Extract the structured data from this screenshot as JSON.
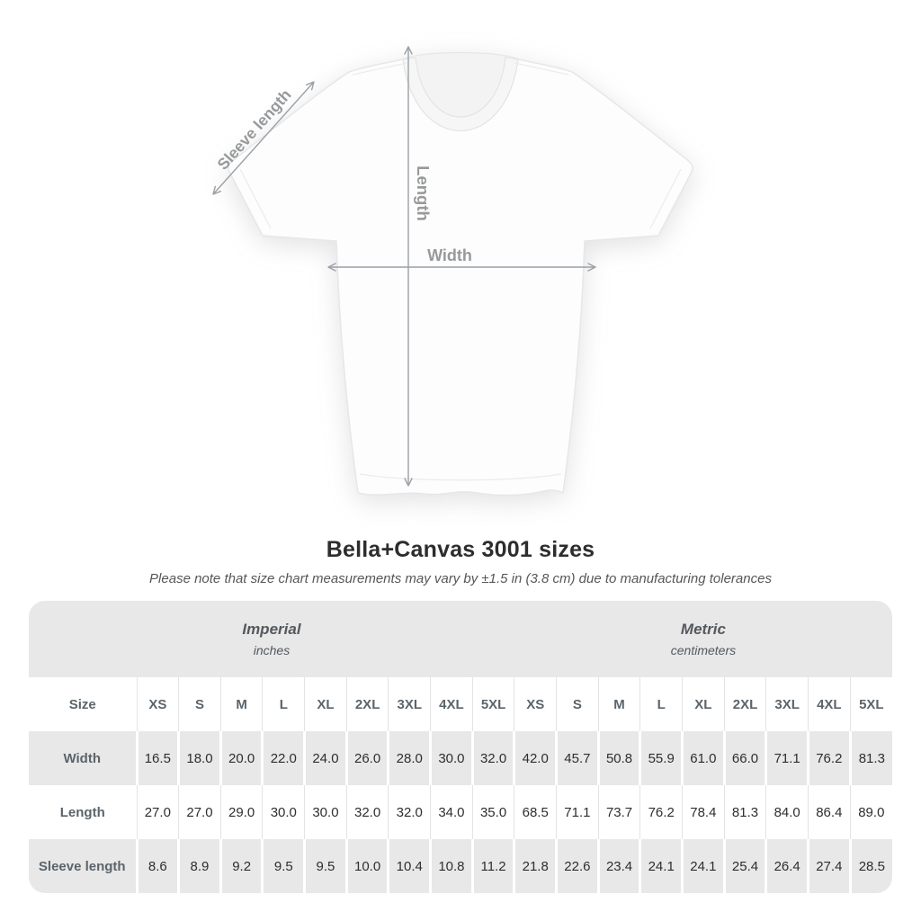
{
  "diagram": {
    "sleeve_label": "Sleeve length",
    "length_label": "Length",
    "width_label": "Width"
  },
  "title": "Bella+Canvas 3001 sizes",
  "subtitle": "Please note that size chart measurements may vary by ±1.5 in (3.8 cm) due to manufacturing tolerances",
  "table": {
    "size_header": "Size",
    "groups": [
      {
        "label": "Imperial",
        "unit": "inches"
      },
      {
        "label": "Metric",
        "unit": "centimeters"
      }
    ],
    "sizes": [
      "XS",
      "S",
      "M",
      "L",
      "XL",
      "2XL",
      "3XL",
      "4XL",
      "5XL"
    ],
    "rows": [
      {
        "label": "Width",
        "imperial": [
          "16.5",
          "18.0",
          "20.0",
          "22.0",
          "24.0",
          "26.0",
          "28.0",
          "30.0",
          "32.0"
        ],
        "metric": [
          "42.0",
          "45.7",
          "50.8",
          "55.9",
          "61.0",
          "66.0",
          "71.1",
          "76.2",
          "81.3"
        ]
      },
      {
        "label": "Length",
        "imperial": [
          "27.0",
          "27.0",
          "29.0",
          "30.0",
          "30.0",
          "32.0",
          "32.0",
          "34.0",
          "35.0"
        ],
        "metric": [
          "68.5",
          "71.1",
          "73.7",
          "76.2",
          "78.4",
          "81.3",
          "84.0",
          "86.4",
          "89.0"
        ]
      },
      {
        "label": "Sleeve length",
        "imperial": [
          "8.6",
          "8.9",
          "9.2",
          "9.5",
          "9.5",
          "10.0",
          "10.4",
          "10.8",
          "11.2"
        ],
        "metric": [
          "21.8",
          "22.6",
          "23.4",
          "24.1",
          "24.1",
          "25.4",
          "26.4",
          "27.4",
          "28.5"
        ]
      }
    ]
  },
  "colors": {
    "table_gray": "#e8e8e8",
    "arrow_gray": "#9aa0a6",
    "header_text": "#5b646b",
    "value_text": "#2e2e2e",
    "title_text": "#2d2d2d"
  },
  "chart_data": {
    "type": "table",
    "title": "Bella+Canvas 3001 sizes",
    "note": "Please note that size chart measurements may vary by ±1.5 in (3.8 cm) due to manufacturing tolerances",
    "column_groups": [
      {
        "label": "Imperial",
        "unit": "inches"
      },
      {
        "label": "Metric",
        "unit": "centimeters"
      }
    ],
    "columns": [
      "XS",
      "S",
      "M",
      "L",
      "XL",
      "2XL",
      "3XL",
      "4XL",
      "5XL"
    ],
    "rows": [
      {
        "measure": "Width",
        "imperial_inches": [
          16.5,
          18.0,
          20.0,
          22.0,
          24.0,
          26.0,
          28.0,
          30.0,
          32.0
        ],
        "metric_cm": [
          42.0,
          45.7,
          50.8,
          55.9,
          61.0,
          66.0,
          71.1,
          76.2,
          81.3
        ]
      },
      {
        "measure": "Length",
        "imperial_inches": [
          27.0,
          27.0,
          29.0,
          30.0,
          30.0,
          32.0,
          32.0,
          34.0,
          35.0
        ],
        "metric_cm": [
          68.5,
          71.1,
          73.7,
          76.2,
          78.4,
          81.3,
          84.0,
          86.4,
          89.0
        ]
      },
      {
        "measure": "Sleeve length",
        "imperial_inches": [
          8.6,
          8.9,
          9.2,
          9.5,
          9.5,
          10.0,
          10.4,
          10.8,
          11.2
        ],
        "metric_cm": [
          21.8,
          22.6,
          23.4,
          24.1,
          24.1,
          25.4,
          26.4,
          27.4,
          28.5
        ]
      }
    ]
  }
}
